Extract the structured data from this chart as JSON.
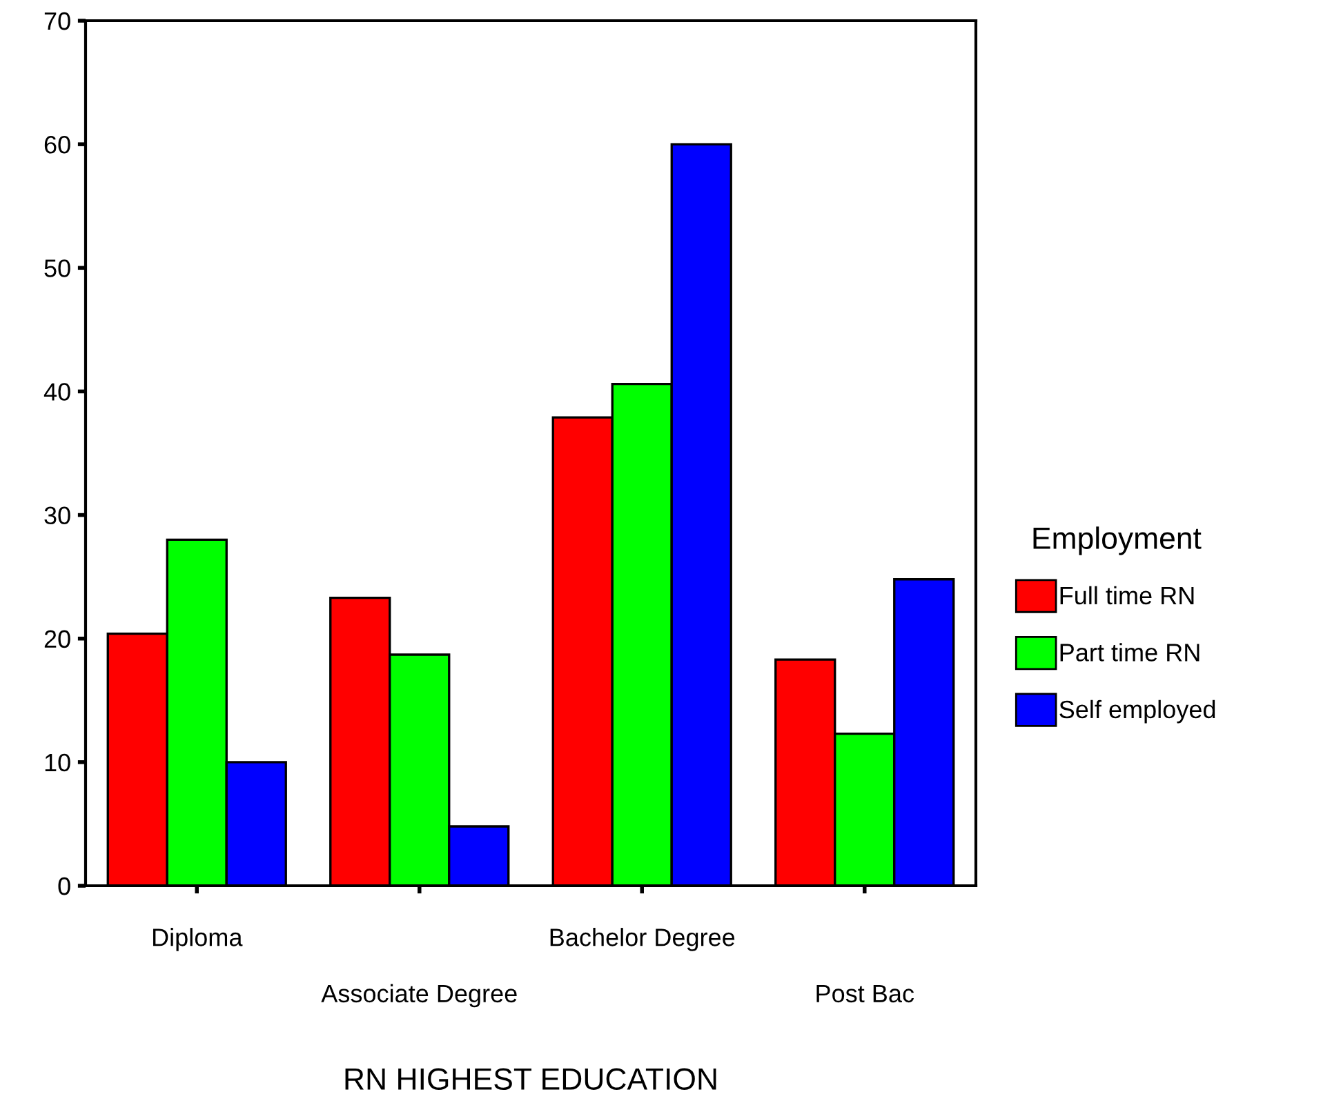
{
  "chart_data": {
    "type": "bar",
    "xlabel": "RN HIGHEST EDUCATION",
    "legend_title": "Employment",
    "categories": [
      "Diploma",
      "Associate Degree",
      "Bachelor Degree",
      "Post Bac"
    ],
    "series": [
      {
        "name": "Full time RN",
        "color": "#ff0000",
        "values": [
          20.4,
          23.3,
          37.9,
          18.3
        ]
      },
      {
        "name": "Part time RN",
        "color": "#00ff00",
        "values": [
          28.0,
          18.7,
          40.6,
          12.3
        ]
      },
      {
        "name": "Self employed",
        "color": "#0000ff",
        "values": [
          10.0,
          4.8,
          60.0,
          24.8
        ]
      }
    ],
    "ylim": [
      0,
      70
    ],
    "yticks": [
      0,
      10,
      20,
      30,
      40,
      50,
      60,
      70
    ],
    "grid": false,
    "legend": "right"
  }
}
